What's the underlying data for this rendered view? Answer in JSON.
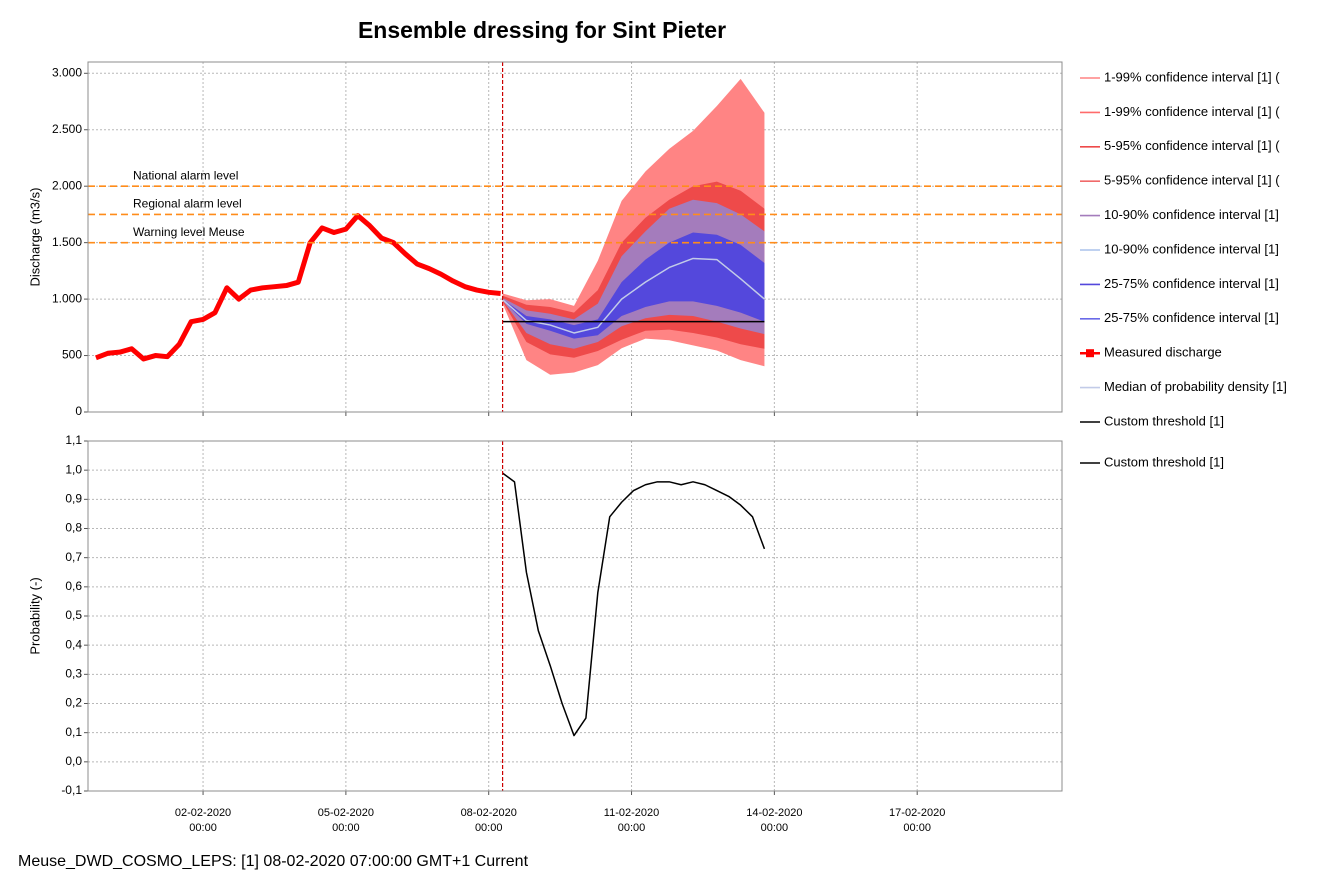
{
  "chart_data": [
    {
      "type": "line",
      "title": "Ensemble dressing for Sint Pieter",
      "y_label": "Discharge (m3/s)",
      "xlim": [
        "30-01-2020 14:00",
        "20-02-2020 01:00"
      ],
      "xticks": [
        "02-02-2020 00:00",
        "05-02-2020 00:00",
        "08-02-2020 00:00",
        "11-02-2020 00:00",
        "14-02-2020 00:00",
        "17-02-2020 00:00"
      ],
      "ylim": [
        0,
        3100
      ],
      "yticks": [
        0,
        500,
        {
          "value": 1000,
          "label": "1.000"
        },
        {
          "value": 1500,
          "label": "1.500"
        },
        {
          "value": 2000,
          "label": "2.000"
        },
        {
          "value": 2500,
          "label": "2.500"
        },
        {
          "value": 3000,
          "label": "3.000"
        }
      ],
      "grid": true,
      "current_time": "08-02-2020 07:00",
      "hlines": [
        {
          "label": "National alarm level",
          "value": 2000,
          "color": "#ff8c1a"
        },
        {
          "label": "Regional alarm level",
          "value": 1750,
          "color": "#ff8c1a"
        },
        {
          "label": "Warning level Meuse",
          "value": 1500,
          "color": "#ff8c1a"
        }
      ],
      "series": [
        {
          "name": "1-99% confidence interval [1]  (",
          "color": "#ff8484",
          "x": [
            "08-02-2020 07:00",
            "08-02-2020 19:00",
            "09-02-2020 07:00",
            "09-02-2020 19:00",
            "10-02-2020 07:00",
            "10-02-2020 19:00",
            "11-02-2020 07:00",
            "11-02-2020 19:00",
            "12-02-2020 07:00",
            "12-02-2020 19:00",
            "13-02-2020 07:00",
            "13-02-2020 19:00"
          ],
          "values": [
            1050,
            990,
            1000,
            940,
            1340,
            1870,
            2130,
            2330,
            2490,
            2710,
            2950,
            2650
          ]
        },
        {
          "name": "1-99% confidence interval [1]  (",
          "color": "#ff6b6b",
          "x": [
            "08-02-2020 07:00",
            "08-02-2020 19:00",
            "09-02-2020 07:00",
            "09-02-2020 19:00",
            "10-02-2020 07:00",
            "10-02-2020 19:00",
            "11-02-2020 07:00",
            "11-02-2020 19:00",
            "12-02-2020 07:00",
            "12-02-2020 19:00",
            "13-02-2020 07:00",
            "13-02-2020 19:00"
          ],
          "values": [
            960,
            460,
            330,
            350,
            415,
            565,
            650,
            635,
            590,
            545,
            460,
            405
          ]
        },
        {
          "name": "5-95% confidence interval [1]  (",
          "color": "#ee4a4a",
          "x": [
            "08-02-2020 07:00",
            "08-02-2020 19:00",
            "09-02-2020 07:00",
            "09-02-2020 19:00",
            "10-02-2020 07:00",
            "10-02-2020 19:00",
            "11-02-2020 07:00",
            "11-02-2020 19:00",
            "12-02-2020 07:00",
            "12-02-2020 19:00",
            "13-02-2020 07:00",
            "13-02-2020 19:00"
          ],
          "values": [
            1030,
            950,
            930,
            880,
            1080,
            1500,
            1720,
            1880,
            2000,
            2040,
            1960,
            1800
          ]
        },
        {
          "name": "5-95% confidence interval [1]  (",
          "color": "#f06a6a",
          "x": [
            "08-02-2020 07:00",
            "08-02-2020 19:00",
            "09-02-2020 07:00",
            "09-02-2020 19:00",
            "10-02-2020 07:00",
            "10-02-2020 19:00",
            "11-02-2020 07:00",
            "11-02-2020 19:00",
            "12-02-2020 07:00",
            "12-02-2020 19:00",
            "13-02-2020 07:00",
            "13-02-2020 19:00"
          ],
          "values": [
            980,
            620,
            510,
            480,
            540,
            640,
            720,
            730,
            700,
            660,
            600,
            560
          ]
        },
        {
          "name": "10-90% confidence interval [1]",
          "color": "#a47cbc",
          "x": [
            "08-02-2020 07:00",
            "08-02-2020 19:00",
            "09-02-2020 07:00",
            "09-02-2020 19:00",
            "10-02-2020 07:00",
            "10-02-2020 19:00",
            "11-02-2020 07:00",
            "11-02-2020 19:00",
            "12-02-2020 07:00",
            "12-02-2020 19:00",
            "13-02-2020 07:00",
            "13-02-2020 19:00"
          ],
          "values": [
            1010,
            900,
            870,
            820,
            960,
            1380,
            1600,
            1800,
            1880,
            1850,
            1750,
            1600
          ]
        },
        {
          "name": "10-90% confidence interval [1]",
          "color": "#aac2ec",
          "x": [
            "08-02-2020 07:00",
            "08-02-2020 19:00",
            "09-02-2020 07:00",
            "09-02-2020 19:00",
            "10-02-2020 07:00",
            "10-02-2020 19:00",
            "11-02-2020 07:00",
            "11-02-2020 19:00",
            "12-02-2020 07:00",
            "12-02-2020 19:00",
            "13-02-2020 07:00",
            "13-02-2020 19:00"
          ],
          "values": [
            990,
            700,
            600,
            560,
            620,
            760,
            830,
            860,
            850,
            800,
            740,
            690
          ]
        },
        {
          "name": "25-75% confidence interval [1]",
          "color": "#5448dc",
          "x": [
            "08-02-2020 07:00",
            "08-02-2020 19:00",
            "09-02-2020 07:00",
            "09-02-2020 19:00",
            "10-02-2020 07:00",
            "10-02-2020 19:00",
            "11-02-2020 07:00",
            "11-02-2020 19:00",
            "12-02-2020 07:00",
            "12-02-2020 19:00",
            "13-02-2020 07:00",
            "13-02-2020 19:00"
          ],
          "values": [
            1000,
            850,
            820,
            770,
            820,
            1150,
            1350,
            1500,
            1590,
            1570,
            1480,
            1320
          ]
        },
        {
          "name": "25-75% confidence interval [1]",
          "color": "#6a6ae8",
          "x": [
            "08-02-2020 07:00",
            "08-02-2020 19:00",
            "09-02-2020 07:00",
            "09-02-2020 19:00",
            "10-02-2020 07:00",
            "10-02-2020 19:00",
            "11-02-2020 07:00",
            "11-02-2020 19:00",
            "12-02-2020 07:00",
            "12-02-2020 19:00",
            "13-02-2020 07:00",
            "13-02-2020 19:00"
          ],
          "values": [
            990,
            780,
            720,
            650,
            680,
            850,
            930,
            980,
            980,
            940,
            880,
            800
          ]
        },
        {
          "name": "Measured discharge",
          "color": "#ff0000",
          "x": [
            "30-01-2020 18:00",
            "31-01-2020 00:00",
            "31-01-2020 06:00",
            "31-01-2020 12:00",
            "31-01-2020 18:00",
            "01-02-2020 00:00",
            "01-02-2020 06:00",
            "01-02-2020 12:00",
            "01-02-2020 18:00",
            "02-02-2020 00:00",
            "02-02-2020 06:00",
            "02-02-2020 12:00",
            "02-02-2020 18:00",
            "03-02-2020 00:00",
            "03-02-2020 06:00",
            "03-02-2020 12:00",
            "03-02-2020 18:00",
            "04-02-2020 00:00",
            "04-02-2020 06:00",
            "04-02-2020 12:00",
            "04-02-2020 18:00",
            "05-02-2020 00:00",
            "05-02-2020 06:00",
            "05-02-2020 12:00",
            "05-02-2020 18:00",
            "06-02-2020 00:00",
            "06-02-2020 06:00",
            "06-02-2020 12:00",
            "06-02-2020 18:00",
            "07-02-2020 00:00",
            "07-02-2020 06:00",
            "07-02-2020 12:00",
            "07-02-2020 18:00",
            "08-02-2020 00:00",
            "08-02-2020 06:00"
          ],
          "values": [
            480,
            520,
            530,
            560,
            470,
            500,
            490,
            600,
            800,
            820,
            880,
            1100,
            1000,
            1080,
            1100,
            1110,
            1120,
            1150,
            1500,
            1630,
            1590,
            1620,
            1740,
            1650,
            1540,
            1500,
            1400,
            1310,
            1270,
            1220,
            1160,
            1110,
            1080,
            1060,
            1050
          ]
        },
        {
          "name": "Median of probability density [1]",
          "color": "#c2cbe8",
          "x": [
            "08-02-2020 07:00",
            "08-02-2020 19:00",
            "09-02-2020 07:00",
            "09-02-2020 19:00",
            "10-02-2020 07:00",
            "10-02-2020 19:00",
            "11-02-2020 07:00",
            "11-02-2020 19:00",
            "12-02-2020 07:00",
            "12-02-2020 19:00",
            "13-02-2020 07:00",
            "13-02-2020 19:00"
          ],
          "values": [
            995,
            810,
            770,
            700,
            750,
            1000,
            1150,
            1280,
            1360,
            1350,
            1180,
            1000
          ]
        },
        {
          "name": "Custom threshold [1]",
          "color": "#000000",
          "x": [
            "08-02-2020 07:00",
            "13-02-2020 19:00"
          ],
          "values": [
            800,
            800
          ]
        }
      ]
    },
    {
      "type": "line",
      "y_label": "Probability (-)",
      "xlim": [
        "30-01-2020 14:00",
        "20-02-2020 01:00"
      ],
      "xticks": [
        "02-02-2020 00:00",
        "05-02-2020 00:00",
        "08-02-2020 00:00",
        "11-02-2020 00:00",
        "14-02-2020 00:00",
        "17-02-2020 00:00"
      ],
      "ylim": [
        -0.1,
        1.1
      ],
      "yticks": [
        {
          "value": -0.1,
          "label": "-0,1"
        },
        {
          "value": 0,
          "label": "0,0"
        },
        {
          "value": 0.1,
          "label": "0,1"
        },
        {
          "value": 0.2,
          "label": "0,2"
        },
        {
          "value": 0.3,
          "label": "0,3"
        },
        {
          "value": 0.4,
          "label": "0,4"
        },
        {
          "value": 0.5,
          "label": "0,5"
        },
        {
          "value": 0.6,
          "label": "0,6"
        },
        {
          "value": 0.7,
          "label": "0,7"
        },
        {
          "value": 0.8,
          "label": "0,8"
        },
        {
          "value": 0.9,
          "label": "0,9"
        },
        {
          "value": 1.0,
          "label": "1,0"
        },
        {
          "value": 1.1,
          "label": "1,1"
        }
      ],
      "grid": true,
      "current_time": "08-02-2020 07:00",
      "series": [
        {
          "name": "Custom threshold [1]",
          "color": "#000000",
          "x": [
            "08-02-2020 07:00",
            "08-02-2020 13:00",
            "08-02-2020 19:00",
            "09-02-2020 01:00",
            "09-02-2020 07:00",
            "09-02-2020 13:00",
            "09-02-2020 19:00",
            "10-02-2020 01:00",
            "10-02-2020 07:00",
            "10-02-2020 13:00",
            "10-02-2020 19:00",
            "11-02-2020 01:00",
            "11-02-2020 07:00",
            "11-02-2020 13:00",
            "11-02-2020 19:00",
            "12-02-2020 01:00",
            "12-02-2020 07:00",
            "12-02-2020 13:00",
            "12-02-2020 19:00",
            "13-02-2020 01:00",
            "13-02-2020 07:00",
            "13-02-2020 13:00",
            "13-02-2020 19:00"
          ],
          "values": [
            0.99,
            0.96,
            0.65,
            0.45,
            0.33,
            0.2,
            0.09,
            0.15,
            0.58,
            0.84,
            0.89,
            0.93,
            0.95,
            0.96,
            0.96,
            0.95,
            0.96,
            0.95,
            0.93,
            0.91,
            0.88,
            0.84,
            0.73
          ]
        }
      ]
    }
  ],
  "status_bar": "Meuse_DWD_COSMO_LEPS: [1] 08-02-2020 07:00:00 GMT+1 Current"
}
